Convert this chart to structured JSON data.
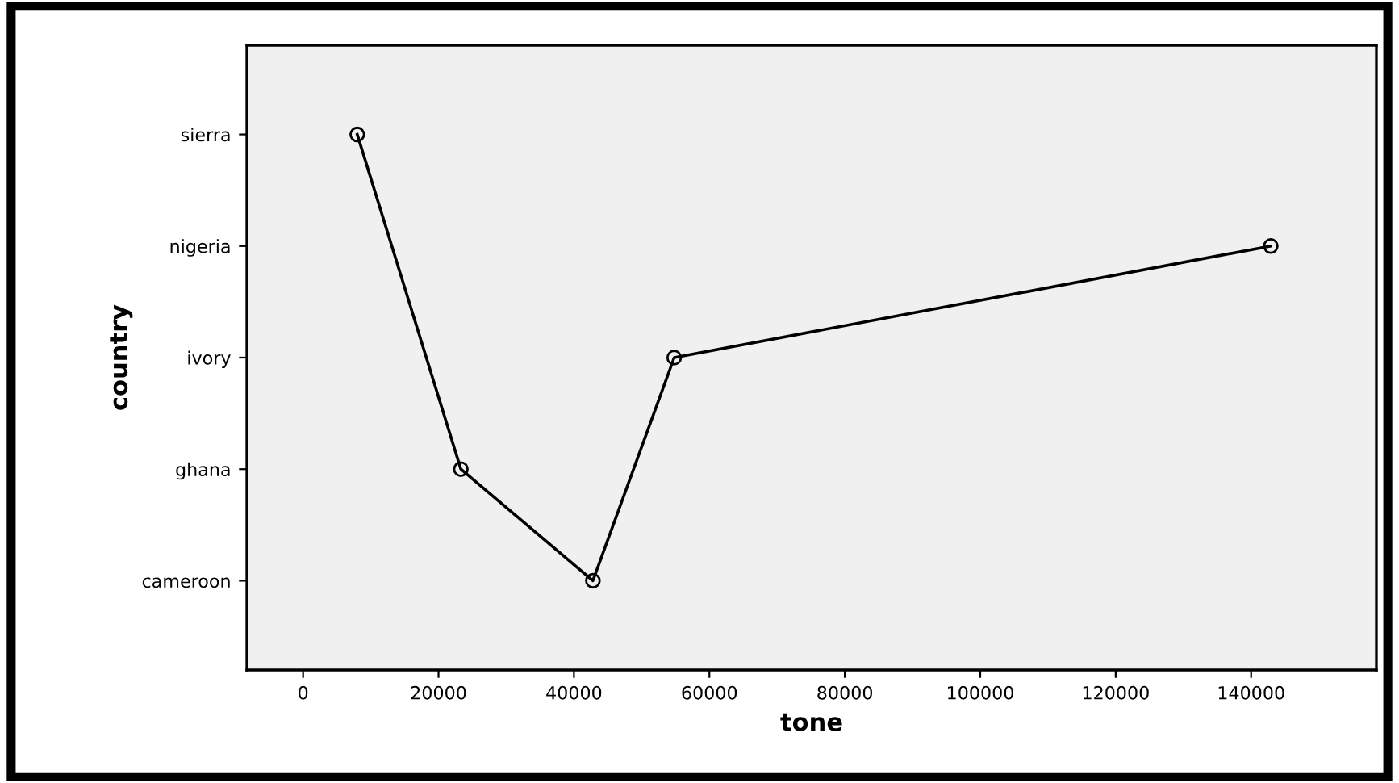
{
  "chart_data": {
    "type": "line",
    "orientation": "horizontal",
    "xlabel": "tone",
    "ylabel": "country",
    "categories": [
      "sierra",
      "nigeria",
      "ivory",
      "ghana",
      "cameroon"
    ],
    "series": [
      {
        "color": "#000000",
        "values": [
          8000,
          142900,
          54800,
          23300,
          42800
        ]
      }
    ],
    "xlim": [
      -8300,
      158500
    ],
    "xticks": [
      0,
      20000,
      40000,
      60000,
      80000,
      100000,
      120000,
      140000
    ],
    "marker": "circle",
    "line_style": "solid"
  }
}
